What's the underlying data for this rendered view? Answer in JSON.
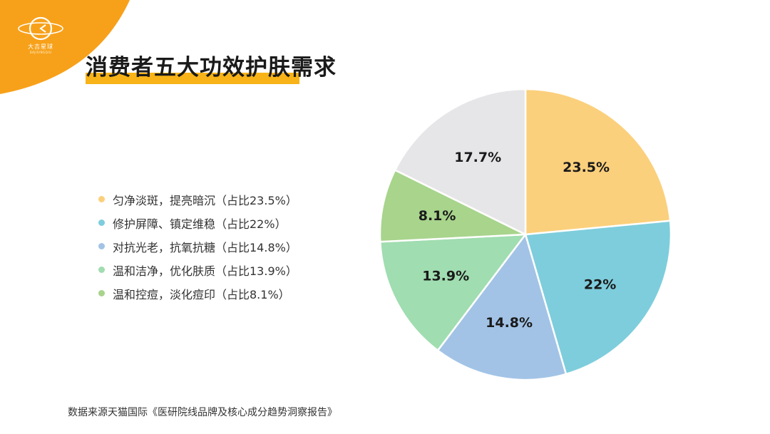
{
  "brand": {
    "name": "大吉星球",
    "sub": "DAJIXINGQIU",
    "accent": "#f7a11a"
  },
  "slide": {
    "title": "消费者五大功效护肤需求",
    "source": "数据来源天猫国际《医研院线品牌及核心成分趋势洞察报告》"
  },
  "legend": [
    {
      "label": "匀净淡斑，提亮暗沉（占比23.5%）",
      "color": "#fbd07c"
    },
    {
      "label": "修护屏障、镇定维稳（占比22%）",
      "color": "#7ecddc"
    },
    {
      "label": "对抗光老，抗氧抗糖（占比14.8%）",
      "color": "#a2c3e6"
    },
    {
      "label": "温和洁净，优化肤质（占比13.9%）",
      "color": "#a0ddb0"
    },
    {
      "label": "温和控痘，淡化痘印（占比8.1%）",
      "color": "#a8d48c"
    }
  ],
  "chart_data": {
    "type": "pie",
    "start_angle_deg": 0,
    "direction": "clockwise",
    "slices": [
      {
        "label": "23.5%",
        "value": 23.5,
        "color": "#fbd07c"
      },
      {
        "label": "22%",
        "value": 22,
        "color": "#7ecddc"
      },
      {
        "label": "14.8%",
        "value": 14.8,
        "color": "#a2c3e6"
      },
      {
        "label": "13.9%",
        "value": 13.9,
        "color": "#a0ddb0"
      },
      {
        "label": "8.1%",
        "value": 8.1,
        "color": "#a8d48c"
      },
      {
        "label": "17.7%",
        "value": 17.7,
        "color": "#e6e6e8"
      }
    ]
  }
}
